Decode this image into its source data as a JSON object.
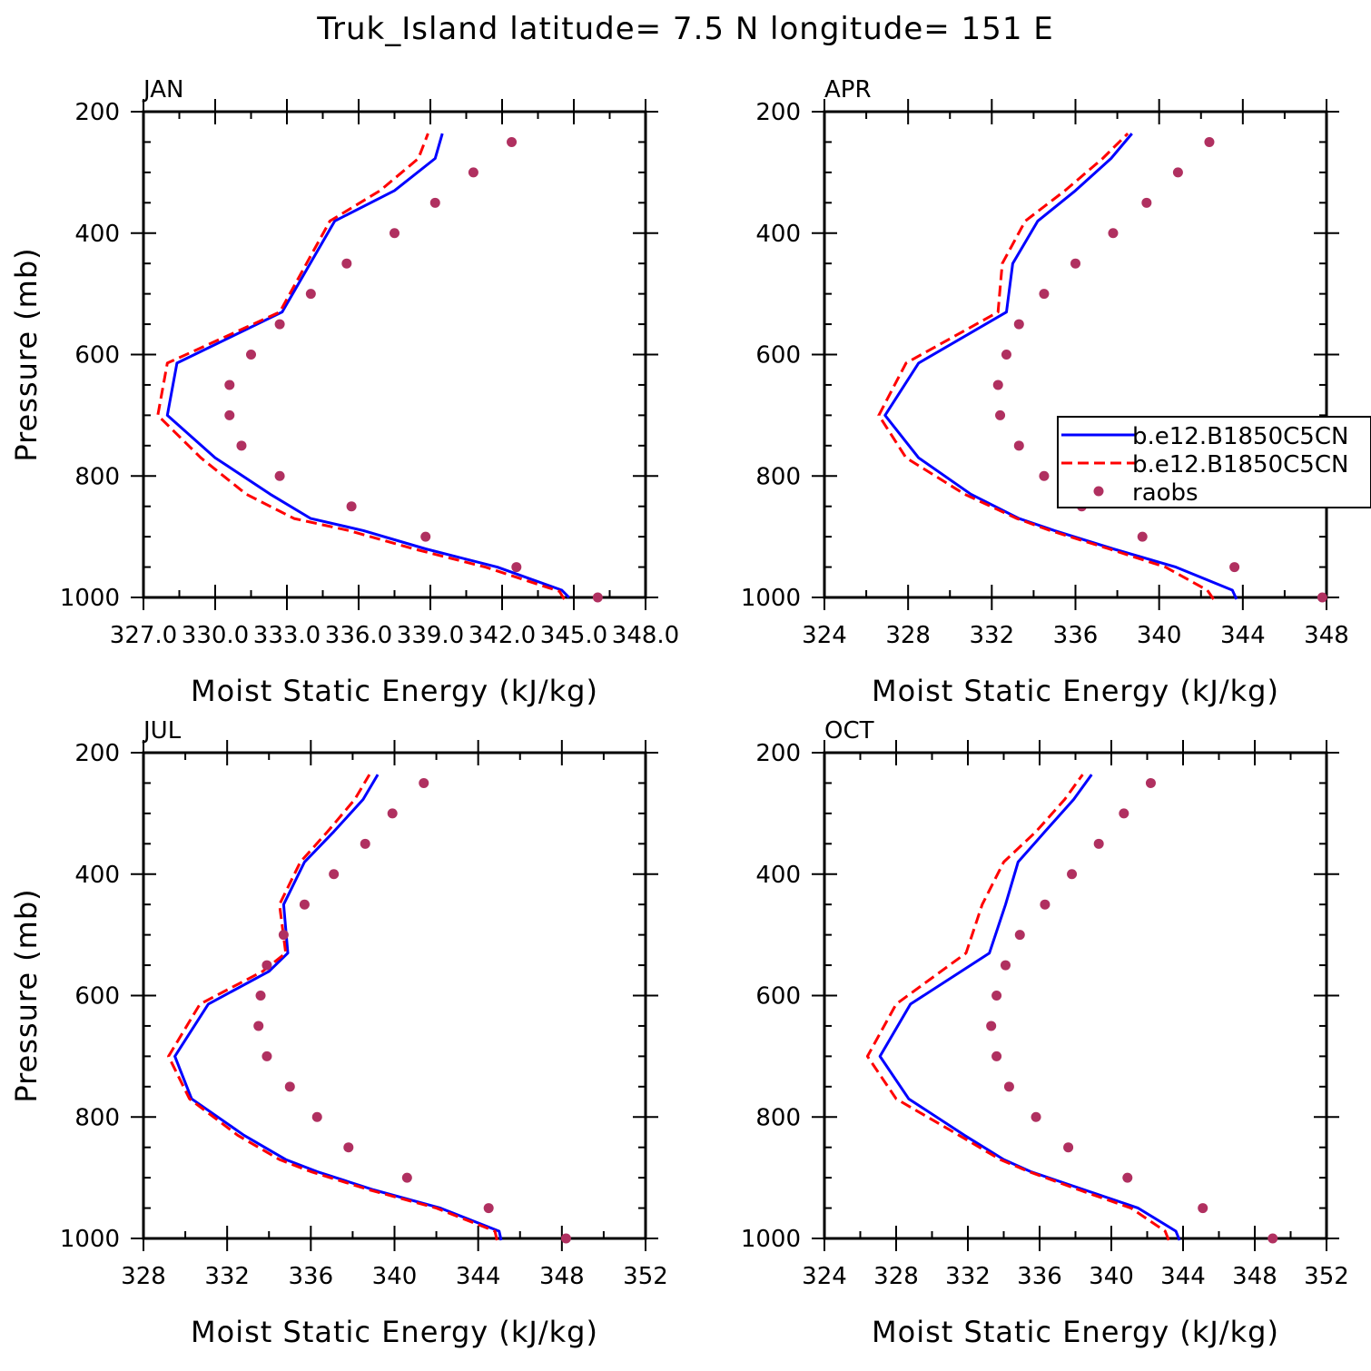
{
  "title": "Truk_Island  latitude= 7.5 N longitude= 151 E",
  "colors": {
    "model1": "#0000ff",
    "model2": "#ff0000",
    "raobs": "#b03060"
  },
  "legend": {
    "panel": 1,
    "items": [
      "b.e12.B1850C5CN",
      "b.e12.B1850C5CN",
      "raobs"
    ]
  },
  "chart_data": [
    {
      "type": "line",
      "panel_label": "JAN",
      "xlabel": "Moist Static Energy (kJ/kg)",
      "ylabel": "Pressure (mb)",
      "xlim": [
        327.0,
        348.0
      ],
      "ylim": [
        1000,
        200
      ],
      "xticks": [
        327,
        330,
        333,
        336,
        339,
        342,
        345,
        348
      ],
      "xticklabels": [
        "327.0",
        "330.0",
        "333.0",
        "336.0",
        "339.0",
        "342.0",
        "345.0",
        "348.0"
      ],
      "yticks": [
        200,
        400,
        600,
        800,
        1000
      ],
      "series": [
        {
          "kind": "solid",
          "x": [
            344.8,
            344.5,
            341.8,
            338.8,
            336.2,
            334.0,
            332.3,
            330.0,
            328.0,
            328.4,
            332.8,
            335.0,
            337.5,
            339.2,
            339.5
          ],
          "y": [
            1000,
            988,
            950,
            920,
            890,
            870,
            830,
            770,
            700,
            614,
            530,
            380,
            330,
            277,
            236
          ]
        },
        {
          "kind": "dashed",
          "x": [
            344.6,
            344.4,
            341.3,
            338.3,
            335.6,
            333.3,
            331.3,
            329.4,
            327.6,
            328.0,
            332.7,
            334.8,
            336.9,
            338.5,
            338.9
          ],
          "y": [
            1003,
            990,
            950,
            920,
            890,
            870,
            830,
            770,
            700,
            614,
            530,
            380,
            330,
            277,
            236
          ]
        },
        {
          "kind": "markers",
          "x": [
            346.0,
            342.6,
            338.8,
            335.7,
            332.7,
            331.1,
            330.6,
            330.6,
            331.5,
            332.7,
            334.0,
            335.5,
            337.5,
            339.2,
            340.8,
            342.4
          ],
          "y": [
            1000,
            950,
            900,
            850,
            800,
            750,
            700,
            650,
            600,
            550,
            500,
            450,
            400,
            350,
            300,
            250
          ]
        }
      ]
    },
    {
      "type": "line",
      "panel_label": "APR",
      "xlabel": "Moist Static Energy (kJ/kg)",
      "ylabel": "",
      "xlim": [
        324,
        348
      ],
      "ylim": [
        1000,
        200
      ],
      "xticks": [
        324,
        328,
        332,
        336,
        340,
        344,
        348
      ],
      "xticklabels": [
        "324",
        "328",
        "332",
        "336",
        "340",
        "344",
        "348"
      ],
      "yticks": [
        200,
        400,
        600,
        800,
        1000
      ],
      "series": [
        {
          "kind": "solid",
          "x": [
            343.7,
            343.5,
            340.8,
            337.8,
            335.0,
            333.3,
            331.0,
            328.5,
            326.9,
            328.5,
            332.7,
            333.0,
            334.2,
            336.0,
            337.7,
            338.7
          ],
          "y": [
            1003,
            988,
            950,
            920,
            890,
            870,
            830,
            770,
            700,
            614,
            530,
            450,
            380,
            330,
            277,
            236
          ]
        },
        {
          "kind": "dashed",
          "x": [
            342.6,
            342.3,
            340.3,
            337.6,
            334.8,
            333.2,
            330.7,
            327.9,
            326.6,
            327.9,
            332.3,
            332.5,
            333.6,
            335.5,
            337.3,
            338.5
          ],
          "y": [
            1003,
            988,
            950,
            920,
            890,
            870,
            830,
            770,
            700,
            614,
            530,
            450,
            380,
            330,
            277,
            236
          ]
        },
        {
          "kind": "markers",
          "x": [
            347.8,
            343.6,
            339.2,
            336.3,
            334.5,
            333.3,
            332.4,
            332.3,
            332.7,
            333.3,
            334.5,
            336.0,
            337.8,
            339.4,
            340.9,
            342.4
          ],
          "y": [
            1000,
            950,
            900,
            850,
            800,
            750,
            700,
            650,
            600,
            550,
            500,
            450,
            400,
            350,
            300,
            250
          ]
        }
      ]
    },
    {
      "type": "line",
      "panel_label": "JUL",
      "xlabel": "Moist Static Energy (kJ/kg)",
      "ylabel": "Pressure (mb)",
      "xlim": [
        328,
        352
      ],
      "ylim": [
        1000,
        200
      ],
      "xticks": [
        328,
        332,
        336,
        340,
        344,
        348,
        352
      ],
      "xticklabels": [
        "328",
        "332",
        "336",
        "340",
        "344",
        "348",
        "352"
      ],
      "yticks": [
        200,
        400,
        600,
        800,
        1000
      ],
      "series": [
        {
          "kind": "solid",
          "x": [
            345.1,
            345.0,
            342.2,
            339.0,
            336.3,
            334.8,
            332.8,
            330.3,
            329.5,
            331.1,
            334.0,
            334.9,
            334.7,
            335.7,
            337.1,
            338.5,
            339.2
          ],
          "y": [
            1003,
            988,
            950,
            920,
            890,
            870,
            830,
            770,
            700,
            614,
            560,
            530,
            450,
            380,
            330,
            277,
            236
          ]
        },
        {
          "kind": "dashed",
          "x": [
            344.9,
            344.8,
            342.0,
            338.8,
            336.0,
            334.5,
            332.5,
            330.2,
            329.2,
            330.7,
            333.7,
            334.8,
            334.5,
            335.5,
            336.8,
            338.1,
            338.8
          ],
          "y": [
            1003,
            988,
            950,
            920,
            890,
            870,
            830,
            770,
            700,
            614,
            560,
            530,
            450,
            380,
            330,
            277,
            236
          ]
        },
        {
          "kind": "markers",
          "x": [
            348.2,
            344.5,
            340.6,
            337.8,
            336.3,
            335.0,
            333.9,
            333.5,
            333.6,
            333.9,
            334.7,
            335.7,
            337.1,
            338.6,
            339.9,
            341.4
          ],
          "y": [
            1000,
            950,
            900,
            850,
            800,
            750,
            700,
            650,
            600,
            550,
            500,
            450,
            400,
            350,
            300,
            250
          ]
        }
      ]
    },
    {
      "type": "line",
      "panel_label": "OCT",
      "xlabel": "Moist Static Energy (kJ/kg)",
      "ylabel": "",
      "xlim": [
        324,
        352
      ],
      "ylim": [
        1000,
        200
      ],
      "xticks": [
        324,
        328,
        332,
        336,
        340,
        344,
        348,
        352
      ],
      "xticklabels": [
        "324",
        "328",
        "332",
        "336",
        "340",
        "344",
        "348",
        "352"
      ],
      "yticks": [
        200,
        400,
        600,
        800,
        1000
      ],
      "series": [
        {
          "kind": "solid",
          "x": [
            343.8,
            343.6,
            341.5,
            338.5,
            335.5,
            334.0,
            331.8,
            328.7,
            327.1,
            328.8,
            333.2,
            334.1,
            334.8,
            336.3,
            337.9,
            338.9
          ],
          "y": [
            1003,
            988,
            950,
            920,
            890,
            870,
            830,
            770,
            700,
            614,
            530,
            450,
            380,
            330,
            277,
            236
          ]
        },
        {
          "kind": "dashed",
          "x": [
            343.2,
            343.0,
            341.1,
            338.2,
            335.4,
            333.8,
            331.5,
            328.0,
            326.4,
            328.0,
            331.9,
            332.8,
            334.0,
            335.8,
            337.4,
            338.4
          ],
          "y": [
            1003,
            988,
            950,
            920,
            890,
            870,
            830,
            770,
            700,
            614,
            530,
            450,
            380,
            330,
            277,
            236
          ]
        },
        {
          "kind": "markers",
          "x": [
            349.0,
            345.1,
            340.9,
            337.6,
            335.8,
            334.3,
            333.6,
            333.3,
            333.6,
            334.1,
            334.9,
            336.3,
            337.8,
            339.3,
            340.7,
            342.2
          ],
          "y": [
            1000,
            950,
            900,
            850,
            800,
            750,
            700,
            650,
            600,
            550,
            500,
            450,
            400,
            350,
            300,
            250
          ]
        }
      ]
    }
  ]
}
